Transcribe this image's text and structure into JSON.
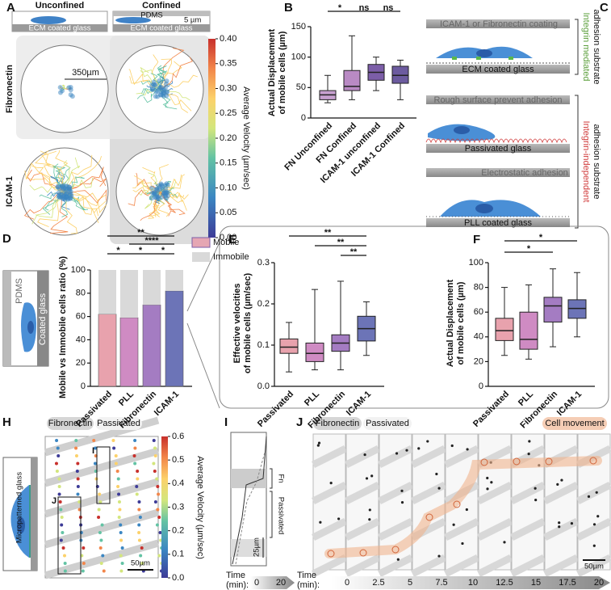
{
  "chart_data": [
    {
      "type": "box",
      "panel": "B",
      "ylabel": [
        "Actual Displacement",
        "of mobile cells (µm)"
      ],
      "categories": [
        "FN Unconfined",
        "FN Confined",
        "ICAM-1 unconfined",
        "ICAM-1 Confined"
      ],
      "colors": [
        "#c7a0cf",
        "#b98ac4",
        "#7c5ea8",
        "#6c5b9f"
      ],
      "boxes": [
        {
          "min": 25,
          "q1": 30,
          "median": 38,
          "q3": 45,
          "max": 70
        },
        {
          "min": 30,
          "q1": 45,
          "median": 52,
          "q3": 78,
          "max": 135
        },
        {
          "min": 45,
          "q1": 62,
          "median": 75,
          "q3": 88,
          "max": 100
        },
        {
          "min": 30,
          "q1": 57,
          "median": 70,
          "q3": 85,
          "max": 95
        }
      ],
      "ylim": [
        0,
        150
      ],
      "yticks": [
        0,
        50,
        100,
        150
      ],
      "significance": [
        "*",
        "ns",
        "ns"
      ]
    },
    {
      "type": "stacked_bar",
      "panel": "D",
      "ylabel": "Mobile vs Immobile cells ratio (%)",
      "categories": [
        "Passivated",
        "PLL",
        "Fibronectin",
        "ICAM-1"
      ],
      "series": [
        {
          "name": "Mobile",
          "color": "#e5a6b3",
          "colors": [
            "#e8a2ad",
            "#cf8bc3",
            "#a47cc2",
            "#6c74b7"
          ],
          "values": [
            62,
            59,
            70,
            82
          ]
        },
        {
          "name": "Immobile",
          "color": "#d9d9d9",
          "values": [
            38,
            41,
            30,
            18
          ]
        }
      ],
      "ylim": [
        0,
        100
      ],
      "yticks": [
        0,
        20,
        40,
        60,
        80,
        100
      ],
      "significance": [
        "**",
        "****",
        "*",
        "*",
        "*"
      ]
    },
    {
      "type": "box",
      "panel": "E",
      "ylabel": [
        "Effective velocities",
        "of mobile cells (µm/sec)"
      ],
      "categories": [
        "Passivated",
        "PLL",
        "Fibronectin",
        "ICAM-1"
      ],
      "colors": [
        "#e8a2ad",
        "#cf8bc3",
        "#a47cc2",
        "#6c74b7"
      ],
      "boxes": [
        {
          "min": 0.035,
          "q1": 0.08,
          "median": 0.095,
          "q3": 0.115,
          "max": 0.155
        },
        {
          "min": 0.04,
          "q1": 0.06,
          "median": 0.08,
          "q3": 0.105,
          "max": 0.235
        },
        {
          "min": 0.04,
          "q1": 0.085,
          "median": 0.105,
          "q3": 0.125,
          "max": 0.255
        },
        {
          "min": 0.075,
          "q1": 0.11,
          "median": 0.14,
          "q3": 0.17,
          "max": 0.205
        }
      ],
      "ylim": [
        0,
        0.3
      ],
      "yticks": [
        {
          "value": 0,
          "label": "0.0"
        },
        0.1,
        0.2,
        0.3
      ],
      "significance": [
        "**",
        "**",
        "**"
      ]
    },
    {
      "type": "box",
      "panel": "F",
      "ylabel": [
        "Actual Displacement",
        "of mobile cells (µm)"
      ],
      "categories": [
        "Passivated",
        "PLL",
        "Fibronectin",
        "ICAM-1"
      ],
      "colors": [
        "#e8a2ad",
        "#cf8bc3",
        "#a47cc2",
        "#6c74b7"
      ],
      "boxes": [
        {
          "min": 25,
          "q1": 37,
          "median": 45,
          "q3": 55,
          "max": 80
        },
        {
          "min": 22,
          "q1": 30,
          "median": 38,
          "q3": 60,
          "max": 82
        },
        {
          "min": 32,
          "q1": 52,
          "median": 65,
          "q3": 72,
          "max": 95
        },
        {
          "min": 40,
          "q1": 55,
          "median": 63,
          "q3": 70,
          "max": 92
        }
      ],
      "ylim": [
        0,
        100
      ],
      "yticks": [
        0,
        20,
        40,
        60,
        80,
        100
      ],
      "significance": [
        "*",
        "*"
      ]
    }
  ],
  "figure": {
    "A": {
      "panel": "A",
      "headers": [
        "Unconfined",
        "Confined"
      ],
      "pdms": "PDMS",
      "thickness": "5 µm",
      "ecm": "ECM coated glass",
      "rows": [
        "Fibronectin",
        "ICAM-1"
      ],
      "scale": "350µm",
      "colorbar": {
        "label": "Average Velocity (µm/sec)",
        "ticks": [
          {
            "value": 0,
            "label": "0.00"
          },
          0.05,
          {
            "value": 0.1,
            "label": "0.10"
          },
          0.15,
          {
            "value": 0.2,
            "label": "0.20"
          },
          0.25,
          {
            "value": 0.3,
            "label": "0.30"
          },
          0.35,
          {
            "value": 0.4,
            "label": "0.40"
          }
        ]
      }
    },
    "C": {
      "panel": "C",
      "coating": "ICAM-1 or Fibronectin coating",
      "ecm": "ECM coated glass",
      "rough": "Rough surface prevent adhesion",
      "passivated": "Passivated glass",
      "electro": "Electrostatic adhesion",
      "pll": "PLL coated glass",
      "side1": [
        "Integrin mediated",
        "adhesion substrate"
      ],
      "side2": [
        "Integrin-independent",
        "adhesion substrate"
      ]
    },
    "D": {
      "pdms": "PDMS",
      "glass": "Coated glass"
    },
    "H": {
      "panel": "H",
      "pills": [
        "Fibronectin",
        "Passivated"
      ],
      "insets": [
        "I",
        "J"
      ],
      "scale": "50µm",
      "glass": "Micropatterned glass",
      "colorbar": {
        "label": "Average Velocity (µm/sec)",
        "ticks": [
          {
            "value": 0,
            "label": "0.0"
          },
          0.1,
          0.2,
          0.3,
          0.4,
          0.5,
          0.6
        ]
      }
    },
    "I": {
      "panel": "I",
      "fn": "Fn",
      "passivated": "Passivated",
      "scale": "25µm",
      "time": [
        "Time",
        "(min):"
      ],
      "times": [
        0,
        20
      ]
    },
    "J": {
      "panel": "J",
      "pills": [
        "Fibronectin",
        "Passivated"
      ],
      "movement": "Cell movement",
      "scale": "50µm",
      "time": [
        "Time",
        "(min):"
      ],
      "times": [
        0,
        2.5,
        5,
        7.5,
        10,
        12.5,
        15,
        17.5,
        20
      ]
    }
  }
}
